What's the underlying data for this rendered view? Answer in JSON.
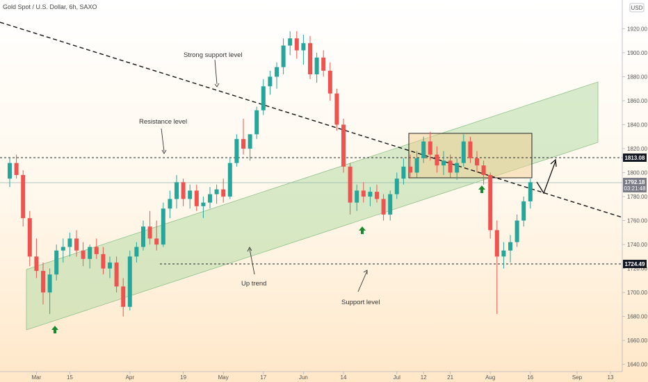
{
  "header": {
    "symbol_title": "Gold Spot / U.S. Dollar, 6h, SAXO",
    "currency": "USD"
  },
  "chart_data": {
    "type": "candlestick",
    "title": "Gold Spot / U.S. Dollar, 6h, SAXO",
    "y_axis": {
      "ylim": [
        1634,
        1944
      ],
      "ticks": [
        1640,
        1660,
        1680,
        1700,
        1720,
        1740,
        1760,
        1780,
        1800,
        1820,
        1840,
        1860,
        1880,
        1900,
        1920
      ],
      "position": "right"
    },
    "x_axis": {
      "labels": [
        {
          "text": "Mar",
          "bar": 4
        },
        {
          "text": "15",
          "bar": 9
        },
        {
          "text": "Apr",
          "bar": 18
        },
        {
          "text": "19",
          "bar": 26
        },
        {
          "text": "May",
          "bar": 32
        },
        {
          "text": "17",
          "bar": 38
        },
        {
          "text": "Jun",
          "bar": 44
        },
        {
          "text": "14",
          "bar": 50
        },
        {
          "text": "Jul",
          "bar": 58
        },
        {
          "text": "12",
          "bar": 62
        },
        {
          "text": "21",
          "bar": 66
        },
        {
          "text": "Aug",
          "bar": 72
        },
        {
          "text": "16",
          "bar": 78
        },
        {
          "text": "Sep",
          "bar": 85
        },
        {
          "text": "13",
          "bar": 90
        }
      ]
    },
    "candles": [
      [
        1795,
        1812,
        1788,
        1808
      ],
      [
        1808,
        1815,
        1795,
        1798
      ],
      [
        1798,
        1802,
        1755,
        1762
      ],
      [
        1762,
        1768,
        1722,
        1730
      ],
      [
        1730,
        1745,
        1712,
        1718
      ],
      [
        1718,
        1725,
        1690,
        1700
      ],
      [
        1700,
        1720,
        1682,
        1715
      ],
      [
        1715,
        1740,
        1710,
        1735
      ],
      [
        1735,
        1745,
        1725,
        1738
      ],
      [
        1738,
        1750,
        1730,
        1745
      ],
      [
        1745,
        1752,
        1730,
        1735
      ],
      [
        1735,
        1742,
        1722,
        1728
      ],
      [
        1728,
        1740,
        1720,
        1738
      ],
      [
        1738,
        1745,
        1728,
        1732
      ],
      [
        1732,
        1738,
        1715,
        1720
      ],
      [
        1720,
        1730,
        1712,
        1725
      ],
      [
        1725,
        1730,
        1700,
        1705
      ],
      [
        1705,
        1712,
        1680,
        1688
      ],
      [
        1688,
        1735,
        1685,
        1730
      ],
      [
        1730,
        1742,
        1725,
        1738
      ],
      [
        1738,
        1760,
        1735,
        1755
      ],
      [
        1755,
        1768,
        1740,
        1745
      ],
      [
        1745,
        1760,
        1735,
        1740
      ],
      [
        1740,
        1775,
        1738,
        1770
      ],
      [
        1770,
        1785,
        1762,
        1778
      ],
      [
        1778,
        1798,
        1770,
        1792
      ],
      [
        1792,
        1795,
        1772,
        1778
      ],
      [
        1778,
        1790,
        1770,
        1785
      ],
      [
        1785,
        1790,
        1768,
        1772
      ],
      [
        1772,
        1780,
        1762,
        1775
      ],
      [
        1775,
        1788,
        1770,
        1782
      ],
      [
        1782,
        1790,
        1774,
        1786
      ],
      [
        1786,
        1795,
        1775,
        1780
      ],
      [
        1780,
        1812,
        1778,
        1808
      ],
      [
        1808,
        1832,
        1805,
        1828
      ],
      [
        1828,
        1845,
        1815,
        1820
      ],
      [
        1820,
        1830,
        1810,
        1832
      ],
      [
        1832,
        1855,
        1828,
        1852
      ],
      [
        1852,
        1878,
        1848,
        1872
      ],
      [
        1872,
        1885,
        1865,
        1880
      ],
      [
        1880,
        1892,
        1870,
        1888
      ],
      [
        1888,
        1912,
        1882,
        1906
      ],
      [
        1906,
        1918,
        1898,
        1912
      ],
      [
        1912,
        1918,
        1895,
        1902
      ],
      [
        1902,
        1915,
        1890,
        1908
      ],
      [
        1908,
        1914,
        1878,
        1882
      ],
      [
        1882,
        1900,
        1875,
        1896
      ],
      [
        1896,
        1902,
        1880,
        1885
      ],
      [
        1885,
        1892,
        1860,
        1866
      ],
      [
        1866,
        1870,
        1835,
        1840
      ],
      [
        1840,
        1845,
        1800,
        1805
      ],
      [
        1805,
        1808,
        1765,
        1775
      ],
      [
        1775,
        1790,
        1768,
        1785
      ],
      [
        1785,
        1792,
        1775,
        1780
      ],
      [
        1780,
        1788,
        1772,
        1784
      ],
      [
        1784,
        1790,
        1775,
        1778
      ],
      [
        1778,
        1782,
        1760,
        1765
      ],
      [
        1765,
        1785,
        1760,
        1782
      ],
      [
        1782,
        1800,
        1778,
        1795
      ],
      [
        1795,
        1812,
        1790,
        1805
      ],
      [
        1805,
        1815,
        1795,
        1800
      ],
      [
        1800,
        1818,
        1796,
        1812
      ],
      [
        1812,
        1830,
        1808,
        1826
      ],
      [
        1826,
        1834,
        1810,
        1815
      ],
      [
        1815,
        1822,
        1800,
        1806
      ],
      [
        1806,
        1818,
        1798,
        1810
      ],
      [
        1810,
        1815,
        1796,
        1800
      ],
      [
        1800,
        1812,
        1794,
        1808
      ],
      [
        1808,
        1832,
        1805,
        1826
      ],
      [
        1826,
        1830,
        1808,
        1812
      ],
      [
        1812,
        1818,
        1800,
        1806
      ],
      [
        1806,
        1810,
        1790,
        1798
      ],
      [
        1798,
        1800,
        1745,
        1752
      ],
      [
        1752,
        1760,
        1682,
        1730
      ],
      [
        1730,
        1742,
        1720,
        1735
      ],
      [
        1735,
        1748,
        1725,
        1742
      ],
      [
        1742,
        1765,
        1738,
        1760
      ],
      [
        1760,
        1780,
        1755,
        1776
      ],
      [
        1776,
        1795,
        1770,
        1792
      ]
    ],
    "annotations": [
      {
        "text": "Strong support level"
      },
      {
        "text": "Resistance level"
      },
      {
        "text": "Up trend"
      },
      {
        "text": "Support level"
      }
    ],
    "price_tags": [
      {
        "value": "1813.08",
        "color": "#131722"
      },
      {
        "value": "1792.18",
        "sub": "03:21:48",
        "color": "#787b86"
      },
      {
        "value": "1724.49",
        "color": "#131722"
      }
    ],
    "levels": {
      "resistance": 1813.08,
      "support": 1724.49,
      "current": 1792.18
    },
    "colors": {
      "up": "#26a69a",
      "down": "#ef5350",
      "channel_fill": "#b7dca7",
      "box_fill": "#f2c98a",
      "arrow": "#1b8a2e"
    }
  }
}
